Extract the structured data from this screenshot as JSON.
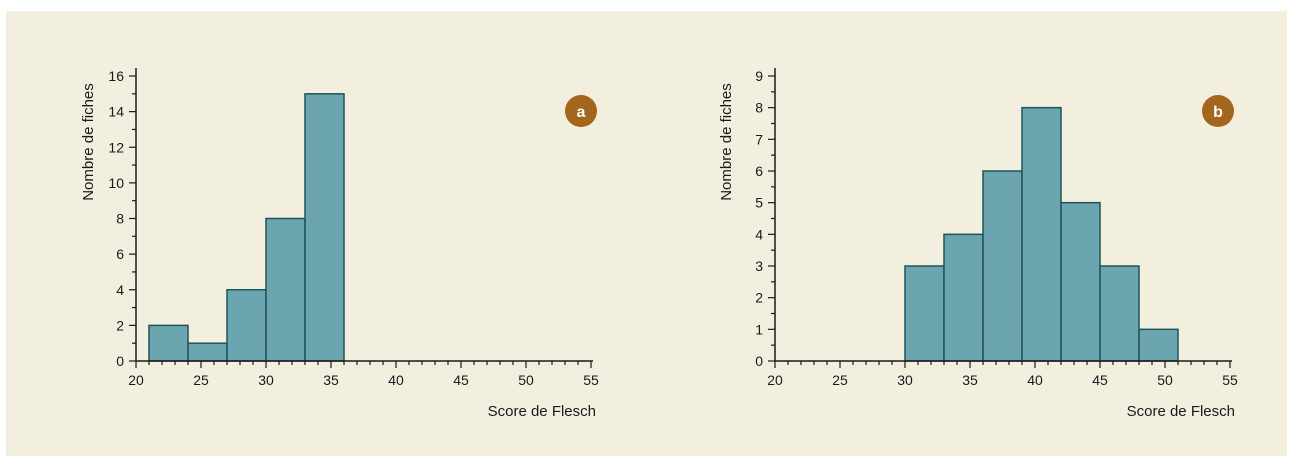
{
  "chart_data": [
    {
      "type": "bar",
      "panel_label": "a",
      "xlabel": "Score de Flesch",
      "ylabel": "Nombre de fiches",
      "xlim": [
        20,
        55
      ],
      "ylim": [
        0,
        16
      ],
      "xticks": [
        20,
        25,
        30,
        35,
        40,
        45,
        50,
        55
      ],
      "yticks": [
        0,
        2,
        4,
        6,
        8,
        10,
        12,
        14,
        16
      ],
      "bins": [
        {
          "from": 21,
          "to": 24,
          "value": 2
        },
        {
          "from": 24,
          "to": 27,
          "value": 1
        },
        {
          "from": 27,
          "to": 30,
          "value": 4
        },
        {
          "from": 30,
          "to": 33,
          "value": 8
        },
        {
          "from": 33,
          "to": 36,
          "value": 15
        }
      ],
      "grid": false
    },
    {
      "type": "bar",
      "panel_label": "b",
      "xlabel": "Score de Flesch",
      "ylabel": "Nombre de fiches",
      "xlim": [
        20,
        55
      ],
      "ylim": [
        0,
        9
      ],
      "xticks": [
        20,
        25,
        30,
        35,
        40,
        45,
        50,
        55
      ],
      "yticks": [
        0,
        1,
        2,
        3,
        4,
        5,
        6,
        7,
        8,
        9
      ],
      "bins": [
        {
          "from": 30,
          "to": 33,
          "value": 3
        },
        {
          "from": 33,
          "to": 36,
          "value": 4
        },
        {
          "from": 36,
          "to": 39,
          "value": 6
        },
        {
          "from": 39,
          "to": 42,
          "value": 8
        },
        {
          "from": 42,
          "to": 45,
          "value": 5
        },
        {
          "from": 45,
          "to": 48,
          "value": 3
        },
        {
          "from": 48,
          "to": 51,
          "value": 1
        }
      ],
      "grid": false
    }
  ],
  "colors": {
    "background": "#f2efdf",
    "bar_fill": "#6ba6b0",
    "bar_stroke": "#1f5559",
    "badge": "#a4651c",
    "axis": "#1a1a1a"
  }
}
